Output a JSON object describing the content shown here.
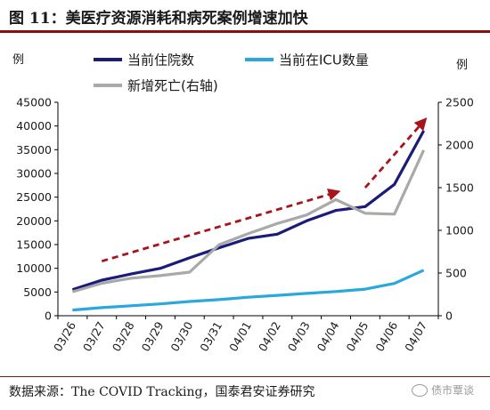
{
  "header": {
    "title": "图 11：美医疗资源消耗和病死案例增速加快"
  },
  "source": {
    "text": "数据来源：The COVID Tracking，国泰君安证券研究",
    "watermark": "债市覃谈"
  },
  "chart_data": {
    "type": "line",
    "left_axis_unit": "例",
    "right_axis_unit": "例",
    "categories": [
      "03/26",
      "03/27",
      "03/28",
      "03/29",
      "03/30",
      "03/31",
      "04/01",
      "04/02",
      "04/03",
      "04/04",
      "04/05",
      "04/06",
      "04/07"
    ],
    "left_axis": {
      "range": [
        0,
        45000
      ],
      "ticks": [
        0,
        5000,
        10000,
        15000,
        20000,
        25000,
        30000,
        35000,
        40000,
        45000
      ]
    },
    "right_axis": {
      "range": [
        0,
        2500
      ],
      "ticks": [
        0,
        500,
        1000,
        1500,
        2000,
        2500
      ]
    },
    "series": [
      {
        "name": "当前住院数",
        "axis": "left",
        "color": "#1b1b7a",
        "values": [
          5500,
          7500,
          8800,
          10000,
          12200,
          14300,
          16300,
          17200,
          20000,
          22200,
          23000,
          27700,
          39000
        ]
      },
      {
        "name": "当前在ICU数量",
        "axis": "left",
        "color": "#2aa7dc",
        "values": [
          1200,
          1700,
          2100,
          2500,
          3000,
          3400,
          3900,
          4300,
          4700,
          5100,
          5600,
          6800,
          9600
        ]
      },
      {
        "name": "新增死亡(右轴)",
        "axis": "right",
        "color": "#a9a9a9",
        "values": [
          280,
          380,
          440,
          470,
          510,
          830,
          960,
          1080,
          1180,
          1360,
          1200,
          1190,
          1940
        ]
      }
    ],
    "annotations": [
      {
        "type": "trend-arrow",
        "color": "#a8141c",
        "from": [
          "03/27",
          11500
        ],
        "to": [
          "04/04",
          26000
        ]
      },
      {
        "type": "trend-arrow",
        "color": "#a8141c",
        "from": [
          "04/05",
          27000
        ],
        "to": [
          "04/07",
          41000
        ]
      }
    ],
    "legend": "top"
  }
}
